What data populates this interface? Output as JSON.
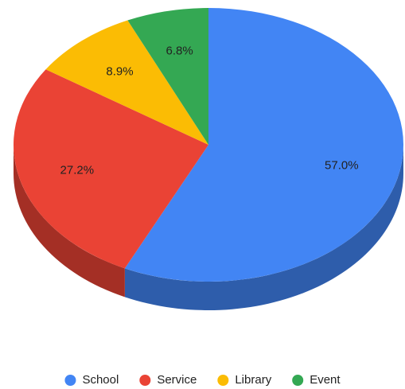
{
  "chart_data": {
    "type": "pie",
    "three_d": true,
    "categories": [
      "School",
      "Service",
      "Library",
      "Event"
    ],
    "values": [
      57.0,
      27.2,
      8.9,
      6.8
    ],
    "value_labels": [
      "57.0%",
      "27.2%",
      "8.9%",
      "6.8%"
    ],
    "colors": [
      "#4285f4",
      "#ea4335",
      "#fbbc04",
      "#34a853"
    ],
    "legend": "bottom"
  }
}
